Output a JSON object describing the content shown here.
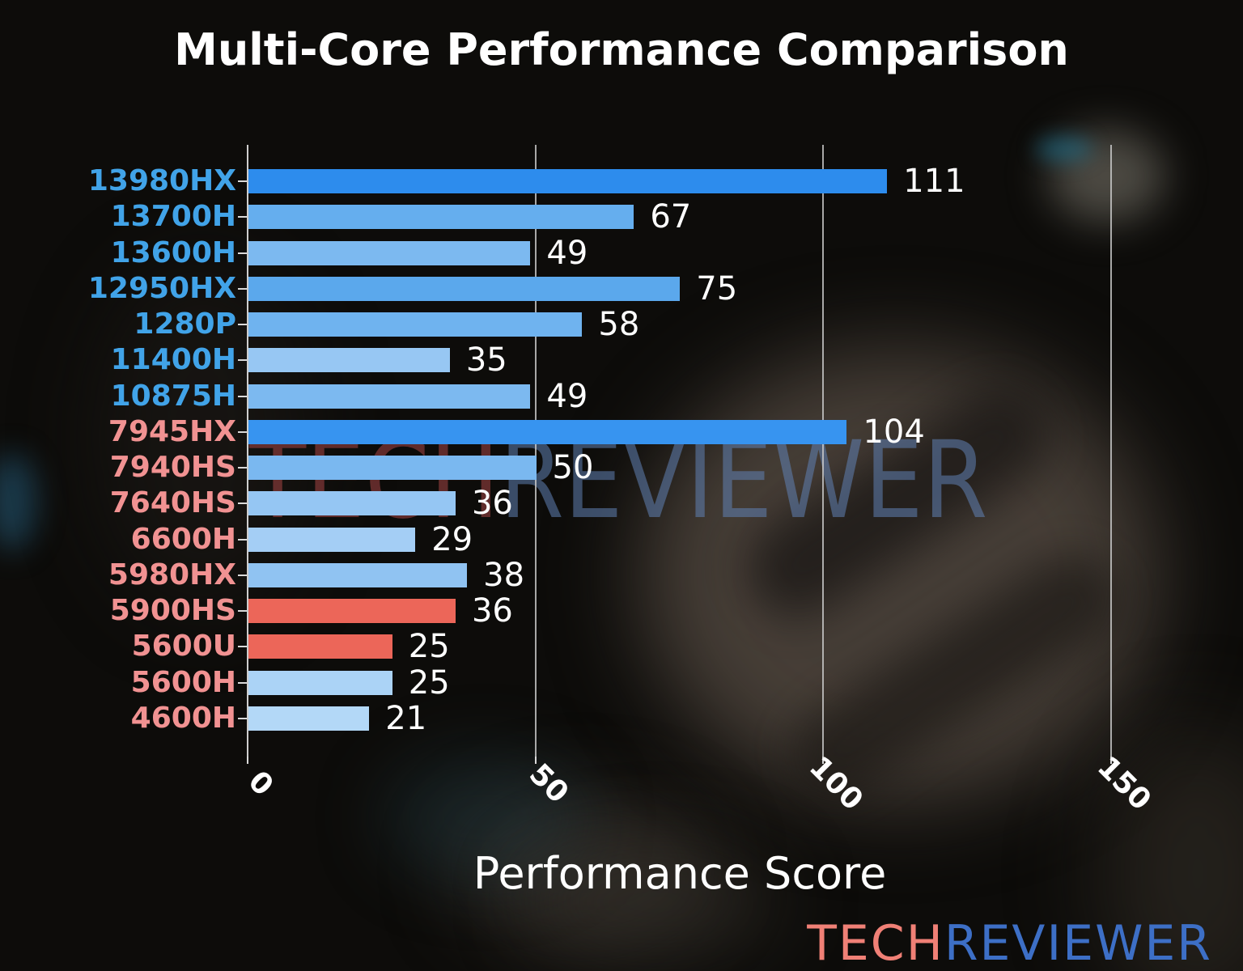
{
  "chart_data": {
    "type": "bar",
    "orientation": "horizontal",
    "title": "Multi-Core Performance Comparison",
    "xlabel": "Performance Score",
    "xlim": [
      0,
      150
    ],
    "xticks": [
      0,
      50,
      100,
      150
    ],
    "grid": "vertical gridlines at x ticks, light gray",
    "legend": "none",
    "categories": [
      "13980HX",
      "13700H",
      "13600H",
      "12950HX",
      "1280P",
      "11400H",
      "10875H",
      "7945HX",
      "7940HS",
      "7640HS",
      "6600H",
      "5980HX",
      "5900HS",
      "5600U",
      "5600H",
      "4600H"
    ],
    "values": [
      111,
      67,
      49,
      75,
      58,
      35,
      49,
      104,
      50,
      36,
      29,
      38,
      36,
      25,
      25,
      21
    ],
    "bar_colors": [
      "#2d8ced",
      "#65aeee",
      "#7cb9f0",
      "#5ba8ec",
      "#6fb3ef",
      "#97c7f3",
      "#7cb9f0",
      "#3794f0",
      "#7ab8f0",
      "#95c6f3",
      "#a4cef5",
      "#90c3f2",
      "#ec6659",
      "#ec6659",
      "#abd3f6",
      "#b3d8f7"
    ],
    "label_colors": [
      "#41a3e8",
      "#41a3e8",
      "#41a3e8",
      "#41a3e8",
      "#41a3e8",
      "#41a3e8",
      "#41a3e8",
      "#f19292",
      "#f19292",
      "#f19292",
      "#f19292",
      "#f19292",
      "#f19292",
      "#f19292",
      "#f19292",
      "#f19292"
    ]
  },
  "watermark": {
    "tech": "TECH",
    "reviewer": "REVIEWER"
  },
  "logo": {
    "tech": "TECH",
    "reviewer": "REVIEWER"
  },
  "colors": {
    "value_label": "#ffffff",
    "grid_line": "#cbcbcb",
    "title_text": "#ffffff",
    "intel_label": "#41a3e8",
    "amd_label": "#f19292",
    "highlight_bar": "#ec6659",
    "logo_tech": "#f08076",
    "logo_reviewer": "#3d6fc6",
    "watermark_tech": "rgba(165,70,70,0.55)",
    "watermark_reviewer": "rgba(96,130,180,0.55)"
  }
}
